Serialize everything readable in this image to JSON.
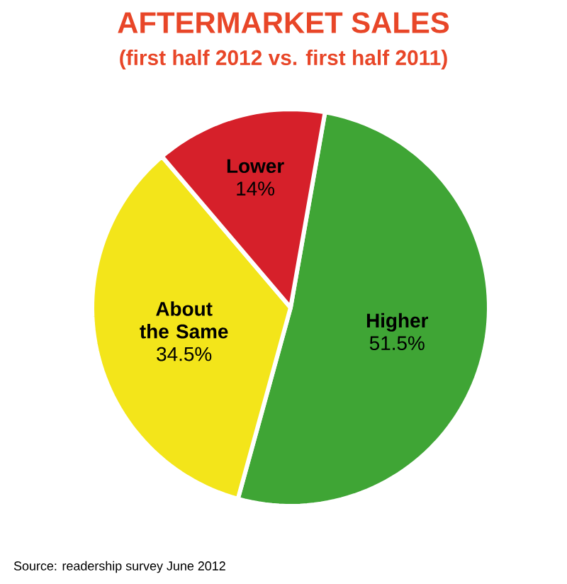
{
  "chart_data": {
    "type": "pie",
    "title": "AFTERMARKET SALES",
    "subtitle": "(first half 2012 vs. first half 2011)",
    "categories": [
      "Higher",
      "About the Same",
      "Lower"
    ],
    "values": [
      51.5,
      34.5,
      14
    ],
    "colors": [
      "#3fa535",
      "#f3e51a",
      "#d6202a"
    ],
    "value_labels": [
      "51.5%",
      "34.5%",
      "14%"
    ],
    "annotations": [
      "Source: readership survey June 2012"
    ]
  }
}
